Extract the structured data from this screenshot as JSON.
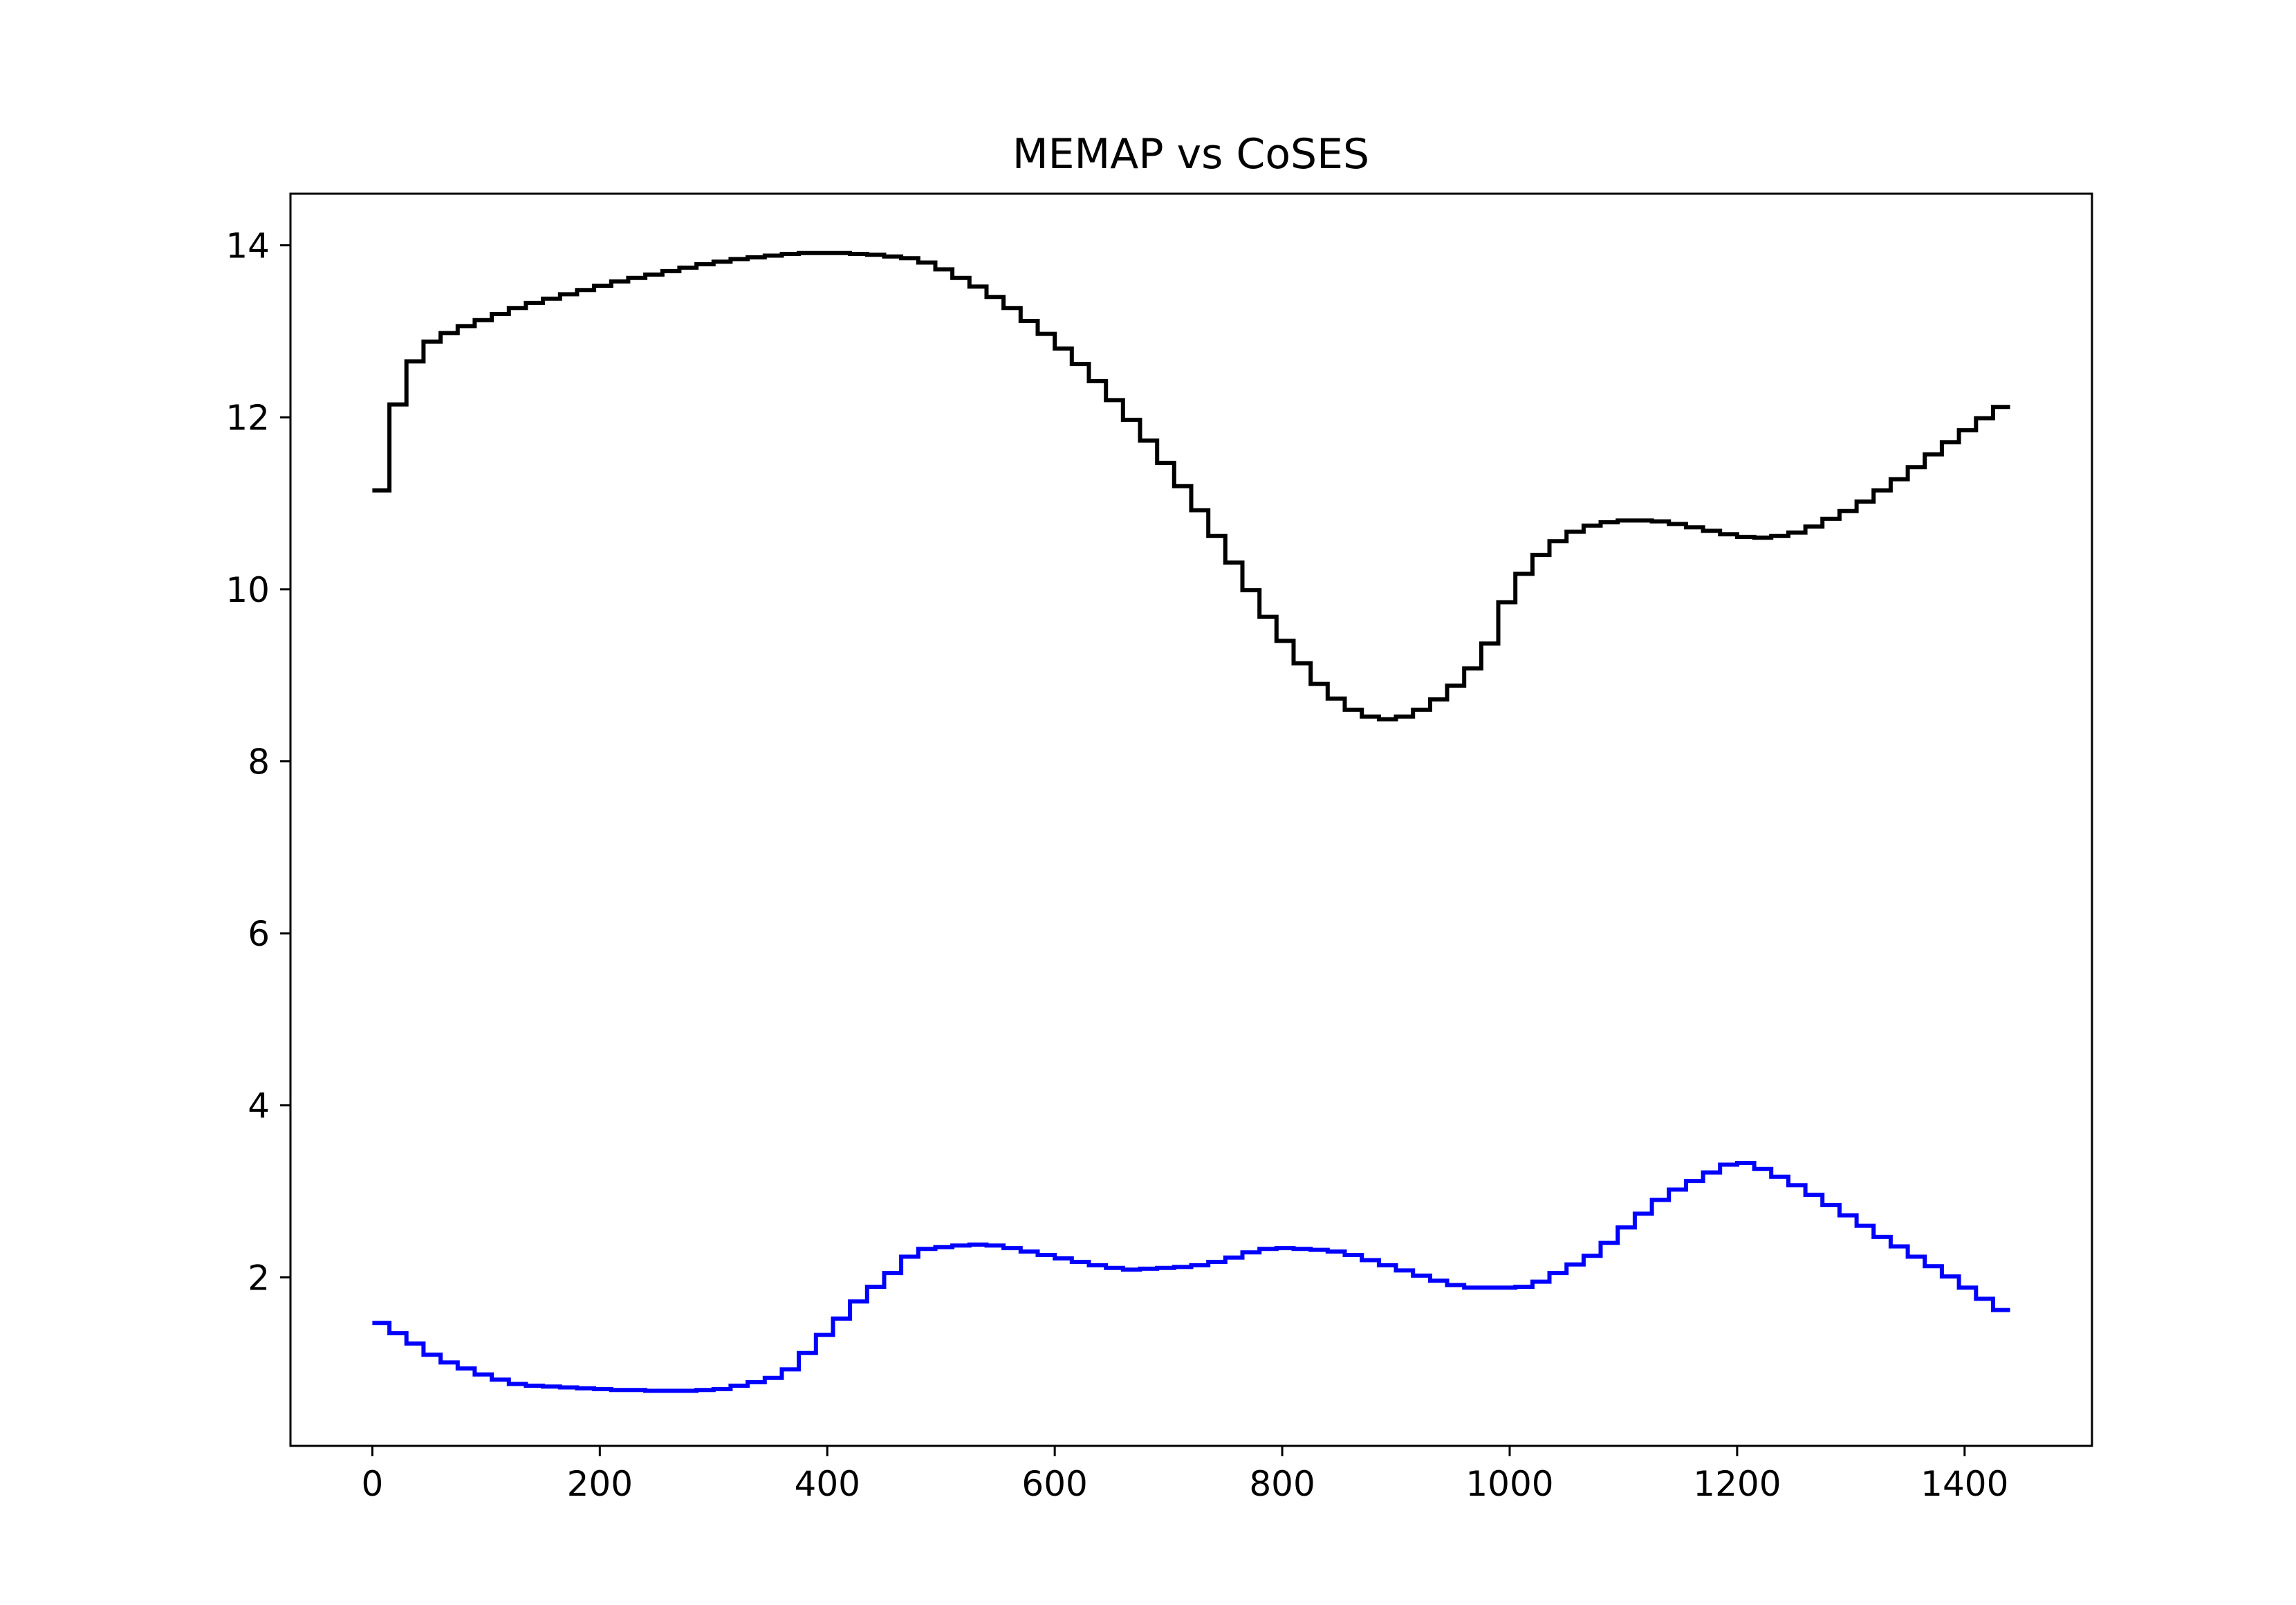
{
  "chart_data": {
    "type": "line",
    "drawstyle": "steps-post",
    "title": "MEMAP vs CoSES",
    "xlabel": "",
    "ylabel": "",
    "xlim": [
      -72,
      1512
    ],
    "ylim": [
      0.04,
      14.6
    ],
    "xticks": [
      0,
      200,
      400,
      600,
      800,
      1000,
      1200,
      1400
    ],
    "yticks": [
      2,
      4,
      6,
      8,
      10,
      12,
      14
    ],
    "grid": false,
    "legend": "none",
    "series": [
      {
        "color": "#000000",
        "x": [
          0,
          15,
          30,
          45,
          60,
          75,
          90,
          105,
          120,
          135,
          150,
          165,
          180,
          195,
          210,
          225,
          240,
          255,
          270,
          285,
          300,
          315,
          330,
          345,
          360,
          375,
          390,
          405,
          420,
          435,
          450,
          465,
          480,
          495,
          510,
          525,
          540,
          555,
          570,
          585,
          600,
          615,
          630,
          645,
          660,
          675,
          690,
          705,
          720,
          735,
          750,
          765,
          780,
          795,
          810,
          825,
          840,
          855,
          870,
          885,
          900,
          915,
          930,
          945,
          960,
          975,
          990,
          1005,
          1020,
          1035,
          1050,
          1065,
          1080,
          1095,
          1110,
          1125,
          1140,
          1155,
          1170,
          1185,
          1200,
          1215,
          1230,
          1245,
          1260,
          1275,
          1290,
          1305,
          1320,
          1335,
          1350,
          1365,
          1380,
          1395,
          1410,
          1425,
          1440
        ],
        "y": [
          11.15,
          12.15,
          12.65,
          12.88,
          12.98,
          13.06,
          13.13,
          13.2,
          13.27,
          13.33,
          13.38,
          13.43,
          13.48,
          13.53,
          13.58,
          13.62,
          13.66,
          13.7,
          13.74,
          13.78,
          13.81,
          13.84,
          13.86,
          13.88,
          13.9,
          13.91,
          13.91,
          13.91,
          13.9,
          13.89,
          13.87,
          13.85,
          13.8,
          13.72,
          13.62,
          13.52,
          13.4,
          13.27,
          13.12,
          12.97,
          12.8,
          12.62,
          12.42,
          12.2,
          11.97,
          11.73,
          11.47,
          11.2,
          10.92,
          10.62,
          10.31,
          9.99,
          9.68,
          9.4,
          9.14,
          8.9,
          8.73,
          8.6,
          8.52,
          8.49,
          8.52,
          8.6,
          8.72,
          8.88,
          9.08,
          9.37,
          9.85,
          10.18,
          10.4,
          10.56,
          10.67,
          10.74,
          10.78,
          10.8,
          10.8,
          10.79,
          10.76,
          10.72,
          10.68,
          10.64,
          10.61,
          10.6,
          10.62,
          10.66,
          10.73,
          10.82,
          10.91,
          11.02,
          11.15,
          11.28,
          11.42,
          11.57,
          11.71,
          11.85,
          11.99,
          12.12,
          12.12
        ]
      },
      {
        "color": "#0000ff",
        "x": [
          0,
          15,
          30,
          45,
          60,
          75,
          90,
          105,
          120,
          135,
          150,
          165,
          180,
          195,
          210,
          225,
          240,
          255,
          270,
          285,
          300,
          315,
          330,
          345,
          360,
          375,
          390,
          405,
          420,
          435,
          450,
          465,
          480,
          495,
          510,
          525,
          540,
          555,
          570,
          585,
          600,
          615,
          630,
          645,
          660,
          675,
          690,
          705,
          720,
          735,
          750,
          765,
          780,
          795,
          810,
          825,
          840,
          855,
          870,
          885,
          900,
          915,
          930,
          945,
          960,
          975,
          990,
          1005,
          1020,
          1035,
          1050,
          1065,
          1080,
          1095,
          1110,
          1125,
          1140,
          1155,
          1170,
          1185,
          1200,
          1215,
          1230,
          1245,
          1260,
          1275,
          1290,
          1305,
          1320,
          1335,
          1350,
          1365,
          1380,
          1395,
          1410,
          1425,
          1440
        ],
        "y": [
          1.47,
          1.35,
          1.23,
          1.1,
          1.01,
          0.94,
          0.87,
          0.81,
          0.76,
          0.74,
          0.73,
          0.72,
          0.71,
          0.7,
          0.69,
          0.69,
          0.68,
          0.68,
          0.68,
          0.69,
          0.7,
          0.74,
          0.78,
          0.83,
          0.93,
          1.12,
          1.33,
          1.52,
          1.72,
          1.89,
          2.05,
          2.24,
          2.33,
          2.35,
          2.37,
          2.38,
          2.37,
          2.34,
          2.3,
          2.26,
          2.22,
          2.18,
          2.14,
          2.11,
          2.09,
          2.1,
          2.11,
          2.12,
          2.14,
          2.18,
          2.23,
          2.29,
          2.33,
          2.34,
          2.33,
          2.32,
          2.3,
          2.26,
          2.2,
          2.14,
          2.08,
          2.02,
          1.96,
          1.91,
          1.88,
          1.88,
          1.88,
          1.89,
          1.95,
          2.05,
          2.15,
          2.25,
          2.4,
          2.58,
          2.74,
          2.9,
          3.02,
          3.12,
          3.22,
          3.31,
          3.33,
          3.26,
          3.17,
          3.07,
          2.96,
          2.84,
          2.72,
          2.6,
          2.47,
          2.36,
          2.24,
          2.13,
          2.01,
          1.88,
          1.75,
          1.62,
          1.62
        ]
      }
    ]
  }
}
